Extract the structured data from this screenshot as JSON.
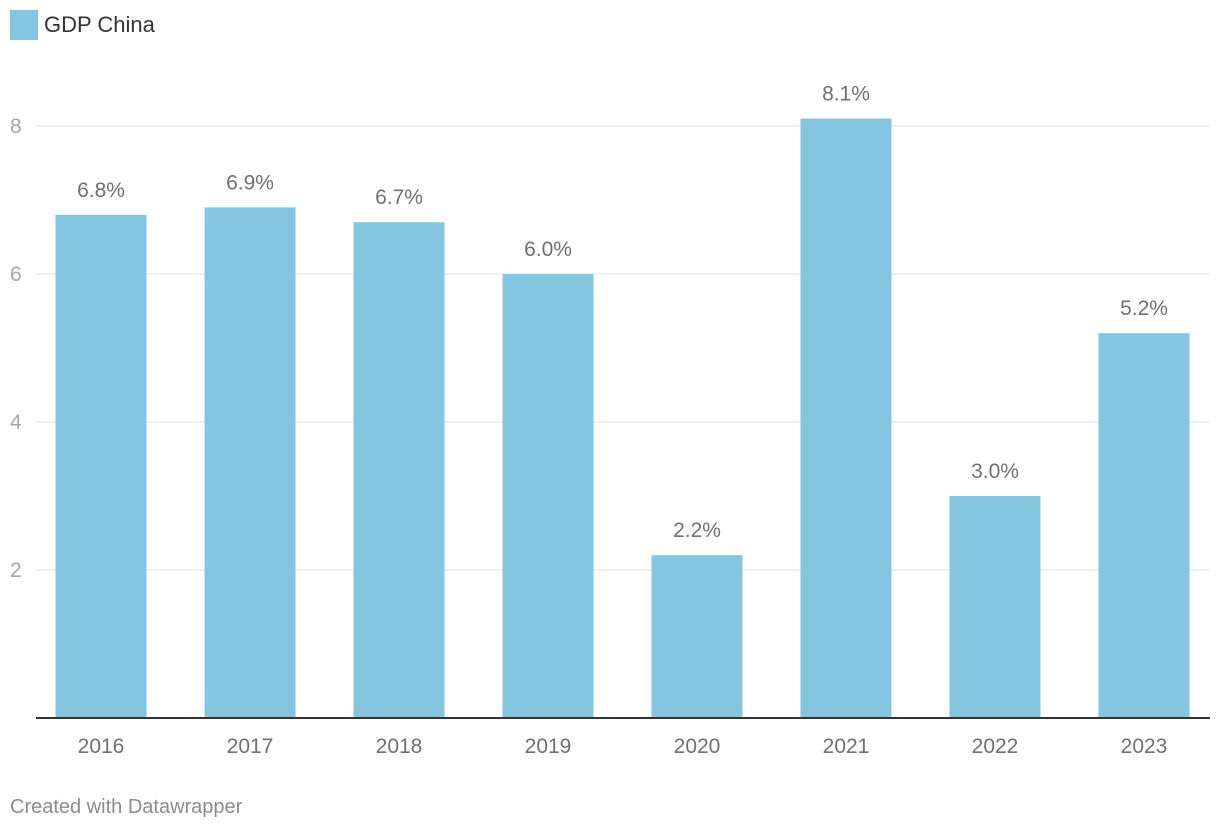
{
  "legend": {
    "label": "GDP China"
  },
  "footer": {
    "credit": "Created with Datawrapper"
  },
  "colors": {
    "bar": "#84c5e0",
    "grid": "#e2e2e2",
    "axis": "#333333",
    "tick_text": "#a6a6a6",
    "label_text": "#707070"
  },
  "chart_data": {
    "type": "bar",
    "categories": [
      "2016",
      "2017",
      "2018",
      "2019",
      "2020",
      "2021",
      "2022",
      "2023"
    ],
    "series": [
      {
        "name": "GDP China",
        "values": [
          6.8,
          6.9,
          6.7,
          6.0,
          2.2,
          8.1,
          3.0,
          5.2
        ]
      }
    ],
    "data_labels": [
      "6.8%",
      "6.9%",
      "6.7%",
      "6.0%",
      "2.2%",
      "8.1%",
      "3.0%",
      "5.2%"
    ],
    "y_ticks": [
      2,
      4,
      6,
      8
    ],
    "ylim": [
      0,
      8.2
    ],
    "grid": true,
    "legend_position": "top-left",
    "title": "",
    "xlabel": "",
    "ylabel": ""
  }
}
